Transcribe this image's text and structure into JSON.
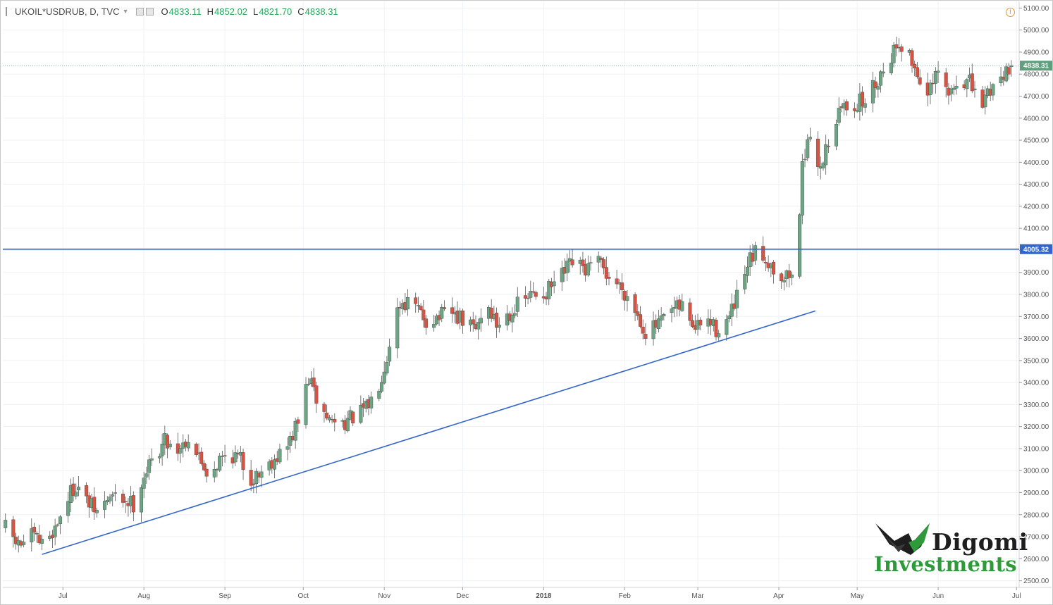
{
  "header": {
    "symbol": "UKOIL*USDRUB, D, TVC",
    "open_label": "O",
    "open": "4833.11",
    "high_label": "H",
    "high": "4852.02",
    "low_label": "L",
    "low": "4821.70",
    "close_label": "C",
    "close": "4838.31"
  },
  "alert_icon": "exclamation-circle-icon",
  "logo": {
    "brand": "Digomi",
    "sub": "Investments"
  },
  "chart_data": {
    "type": "candlestick",
    "title": "UKOIL*USDRUB, D, TVC",
    "colors": {
      "up": "#6ba583",
      "down": "#d75442",
      "wick": "#555555",
      "support": "#3366cc",
      "last_price": "#5f9f7e",
      "grid": "#eef1f5"
    },
    "ylim": [
      2470,
      5130
    ],
    "y_ticks": [
      "5100.00",
      "5000.00",
      "4900.00",
      "4800.00",
      "4700.00",
      "4600.00",
      "4500.00",
      "4400.00",
      "4300.00",
      "4200.00",
      "4100.00",
      "4000.00",
      "3900.00",
      "3800.00",
      "3700.00",
      "3600.00",
      "3500.00",
      "3400.00",
      "3300.00",
      "3200.00",
      "3100.00",
      "3000.00",
      "2900.00",
      "2800.00",
      "2700.00",
      "2600.00",
      "2500.00"
    ],
    "x_labels": [
      "Jul",
      "Aug",
      "Sep",
      "Oct",
      "Nov",
      "Dec",
      "2018",
      "Feb",
      "Mar",
      "Apr",
      "May",
      "Jun",
      "Jul"
    ],
    "x_label_dates": [
      "2017-07-01",
      "2017-08-01",
      "2017-09-01",
      "2017-10-01",
      "2017-11-01",
      "2017-12-01",
      "2018-01-01",
      "2018-02-01",
      "2018-03-01",
      "2018-04-01",
      "2018-05-01",
      "2018-06-01",
      "2018-07-01"
    ],
    "x_range": [
      "2017-06-08",
      "2018-07-02"
    ],
    "horizontal_line": {
      "value": 4005.32,
      "label": "4005.32"
    },
    "last_price": {
      "value": 4838.31,
      "label": "4838.31"
    },
    "trendline": {
      "start": [
        "2017-06-23",
        2620
      ],
      "end": [
        "2018-04-15",
        3725
      ]
    },
    "price_path": [
      [
        "2017-06-09",
        2740
      ],
      [
        "2017-06-14",
        2660
      ],
      [
        "2017-06-19",
        2700
      ],
      [
        "2017-06-23",
        2670
      ],
      [
        "2017-06-28",
        2740
      ],
      [
        "2017-07-03",
        2880
      ],
      [
        "2017-07-06",
        2940
      ],
      [
        "2017-07-10",
        2860
      ],
      [
        "2017-07-14",
        2810
      ],
      [
        "2017-07-19",
        2880
      ],
      [
        "2017-07-24",
        2870
      ],
      [
        "2017-07-28",
        2850
      ],
      [
        "2017-08-01",
        2980
      ],
      [
        "2017-08-05",
        3060
      ],
      [
        "2017-08-09",
        3140
      ],
      [
        "2017-08-14",
        3100
      ],
      [
        "2017-08-18",
        3150
      ],
      [
        "2017-08-22",
        3060
      ],
      [
        "2017-08-26",
        2980
      ],
      [
        "2017-08-30",
        3050
      ],
      [
        "2017-09-03",
        3080
      ],
      [
        "2017-09-07",
        3050
      ],
      [
        "2017-09-11",
        2960
      ],
      [
        "2017-09-15",
        3000
      ],
      [
        "2017-09-20",
        3060
      ],
      [
        "2017-09-25",
        3110
      ],
      [
        "2017-09-29",
        3220
      ],
      [
        "2017-10-03",
        3420
      ],
      [
        "2017-10-07",
        3290
      ],
      [
        "2017-10-11",
        3230
      ],
      [
        "2017-10-16",
        3220
      ],
      [
        "2017-10-20",
        3240
      ],
      [
        "2017-10-25",
        3280
      ],
      [
        "2017-10-29",
        3360
      ],
      [
        "2017-11-02",
        3520
      ],
      [
        "2017-11-05",
        3720
      ],
      [
        "2017-11-08",
        3770
      ],
      [
        "2017-11-13",
        3740
      ],
      [
        "2017-11-17",
        3680
      ],
      [
        "2017-11-22",
        3700
      ],
      [
        "2017-11-27",
        3710
      ],
      [
        "2017-12-01",
        3680
      ],
      [
        "2017-12-06",
        3640
      ],
      [
        "2017-12-10",
        3770
      ],
      [
        "2017-12-14",
        3660
      ],
      [
        "2017-12-19",
        3720
      ],
      [
        "2017-12-24",
        3770
      ],
      [
        "2017-12-28",
        3800
      ],
      [
        "2018-01-02",
        3810
      ],
      [
        "2018-01-07",
        3870
      ],
      [
        "2018-01-12",
        3940
      ],
      [
        "2018-01-17",
        3910
      ],
      [
        "2018-01-22",
        3940
      ],
      [
        "2018-01-26",
        3880
      ],
      [
        "2018-01-31",
        3830
      ],
      [
        "2018-02-04",
        3760
      ],
      [
        "2018-02-09",
        3630
      ],
      [
        "2018-02-14",
        3660
      ],
      [
        "2018-02-19",
        3720
      ],
      [
        "2018-02-24",
        3750
      ],
      [
        "2018-02-28",
        3640
      ],
      [
        "2018-03-04",
        3690
      ],
      [
        "2018-03-08",
        3640
      ],
      [
        "2018-03-13",
        3690
      ],
      [
        "2018-03-17",
        3810
      ],
      [
        "2018-03-21",
        3950
      ],
      [
        "2018-03-24",
        4000
      ],
      [
        "2018-03-28",
        3950
      ],
      [
        "2018-04-02",
        3880
      ],
      [
        "2018-04-06",
        3890
      ],
      [
        "2018-04-09",
        4140
      ],
      [
        "2018-04-10",
        4430
      ],
      [
        "2018-04-13",
        4480
      ],
      [
        "2018-04-17",
        4380
      ],
      [
        "2018-04-21",
        4540
      ],
      [
        "2018-04-25",
        4650
      ],
      [
        "2018-04-29",
        4660
      ],
      [
        "2018-05-04",
        4680
      ],
      [
        "2018-05-09",
        4780
      ],
      [
        "2018-05-13",
        4870
      ],
      [
        "2018-05-17",
        4950
      ],
      [
        "2018-05-21",
        4880
      ],
      [
        "2018-05-25",
        4780
      ],
      [
        "2018-05-28",
        4700
      ],
      [
        "2018-06-01",
        4800
      ],
      [
        "2018-06-05",
        4700
      ],
      [
        "2018-06-09",
        4780
      ],
      [
        "2018-06-13",
        4760
      ],
      [
        "2018-06-17",
        4640
      ],
      [
        "2018-06-20",
        4720
      ],
      [
        "2018-06-24",
        4780
      ],
      [
        "2018-06-28",
        4838
      ]
    ]
  }
}
